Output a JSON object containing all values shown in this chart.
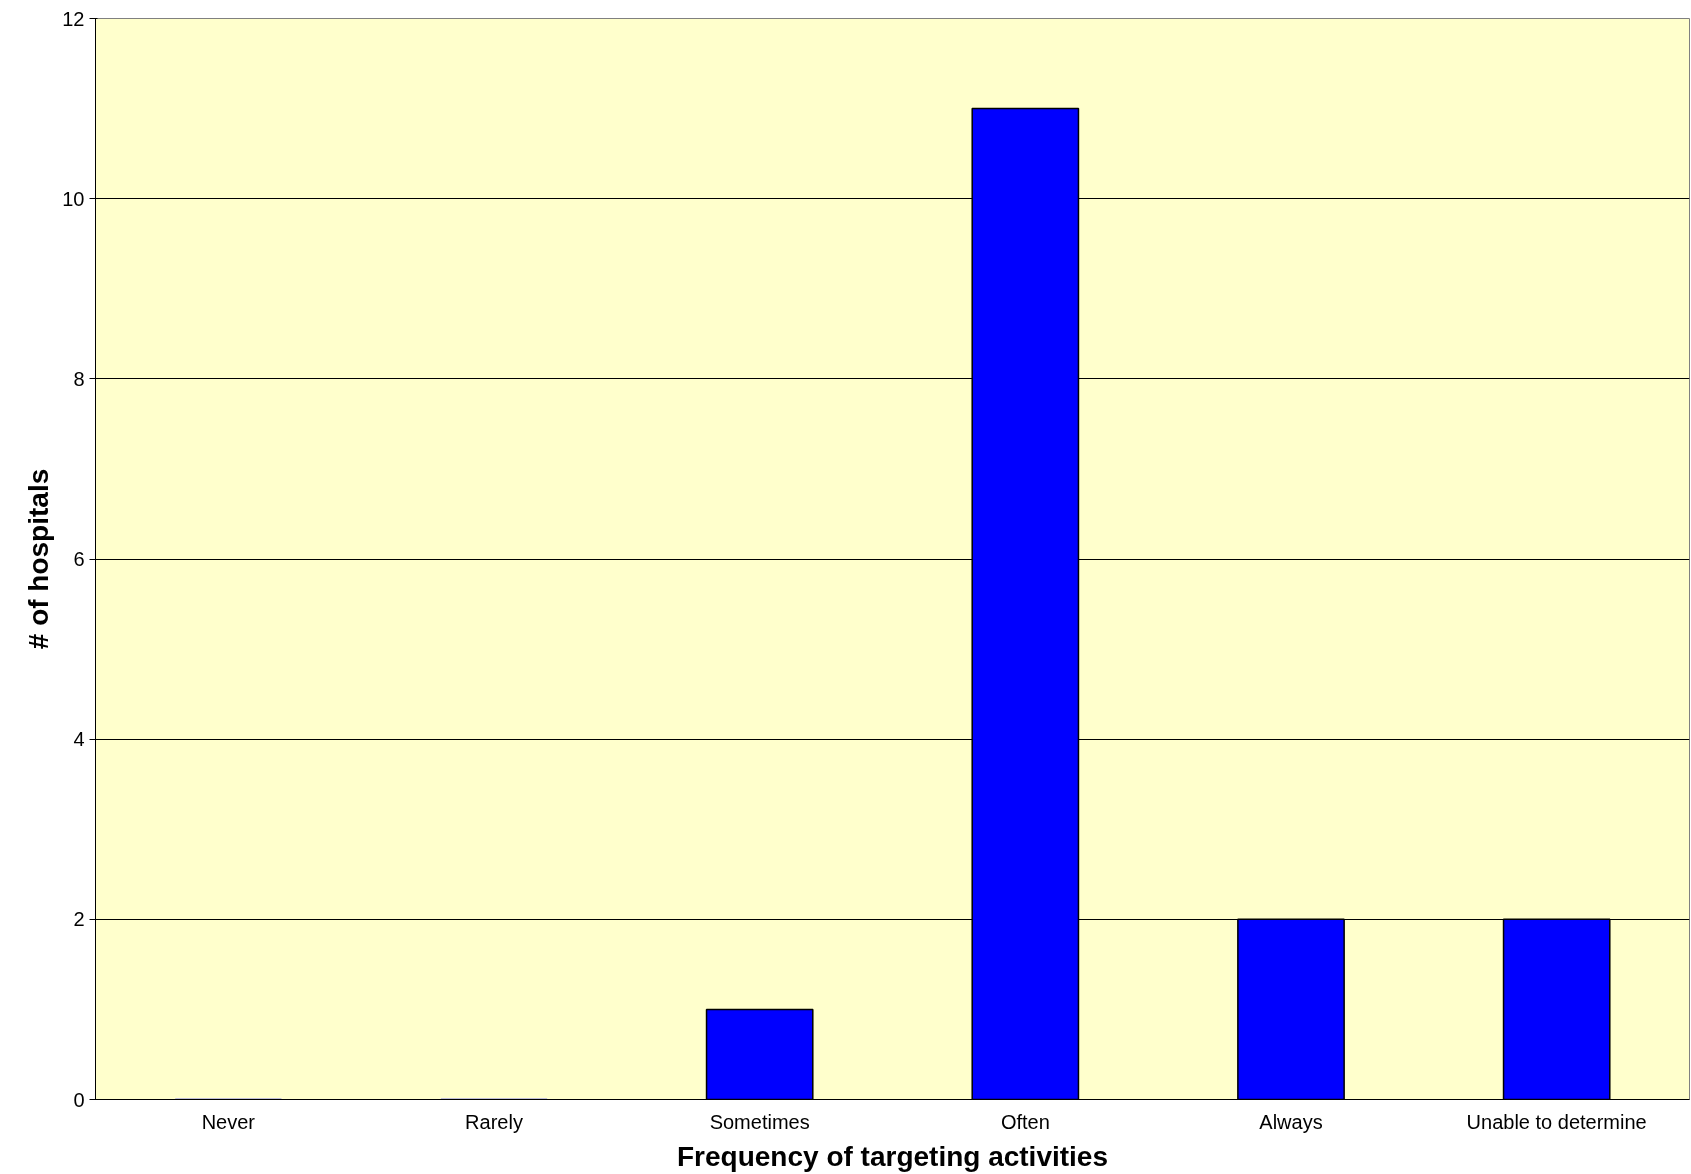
{
  "chart_data": {
    "type": "bar",
    "xlabel": "Frequency of targeting activities",
    "ylabel": "# of hospitals",
    "categories": [
      "Never",
      "Rarely",
      "Sometimes",
      "Often",
      "Always",
      "Unable to determine"
    ],
    "values": [
      0,
      0,
      1,
      11,
      2,
      2
    ],
    "color": "#0000ff",
    "ylim": [
      0,
      12
    ],
    "yticks": [
      0,
      2,
      4,
      6,
      8,
      10,
      12
    ],
    "grid": "y"
  }
}
